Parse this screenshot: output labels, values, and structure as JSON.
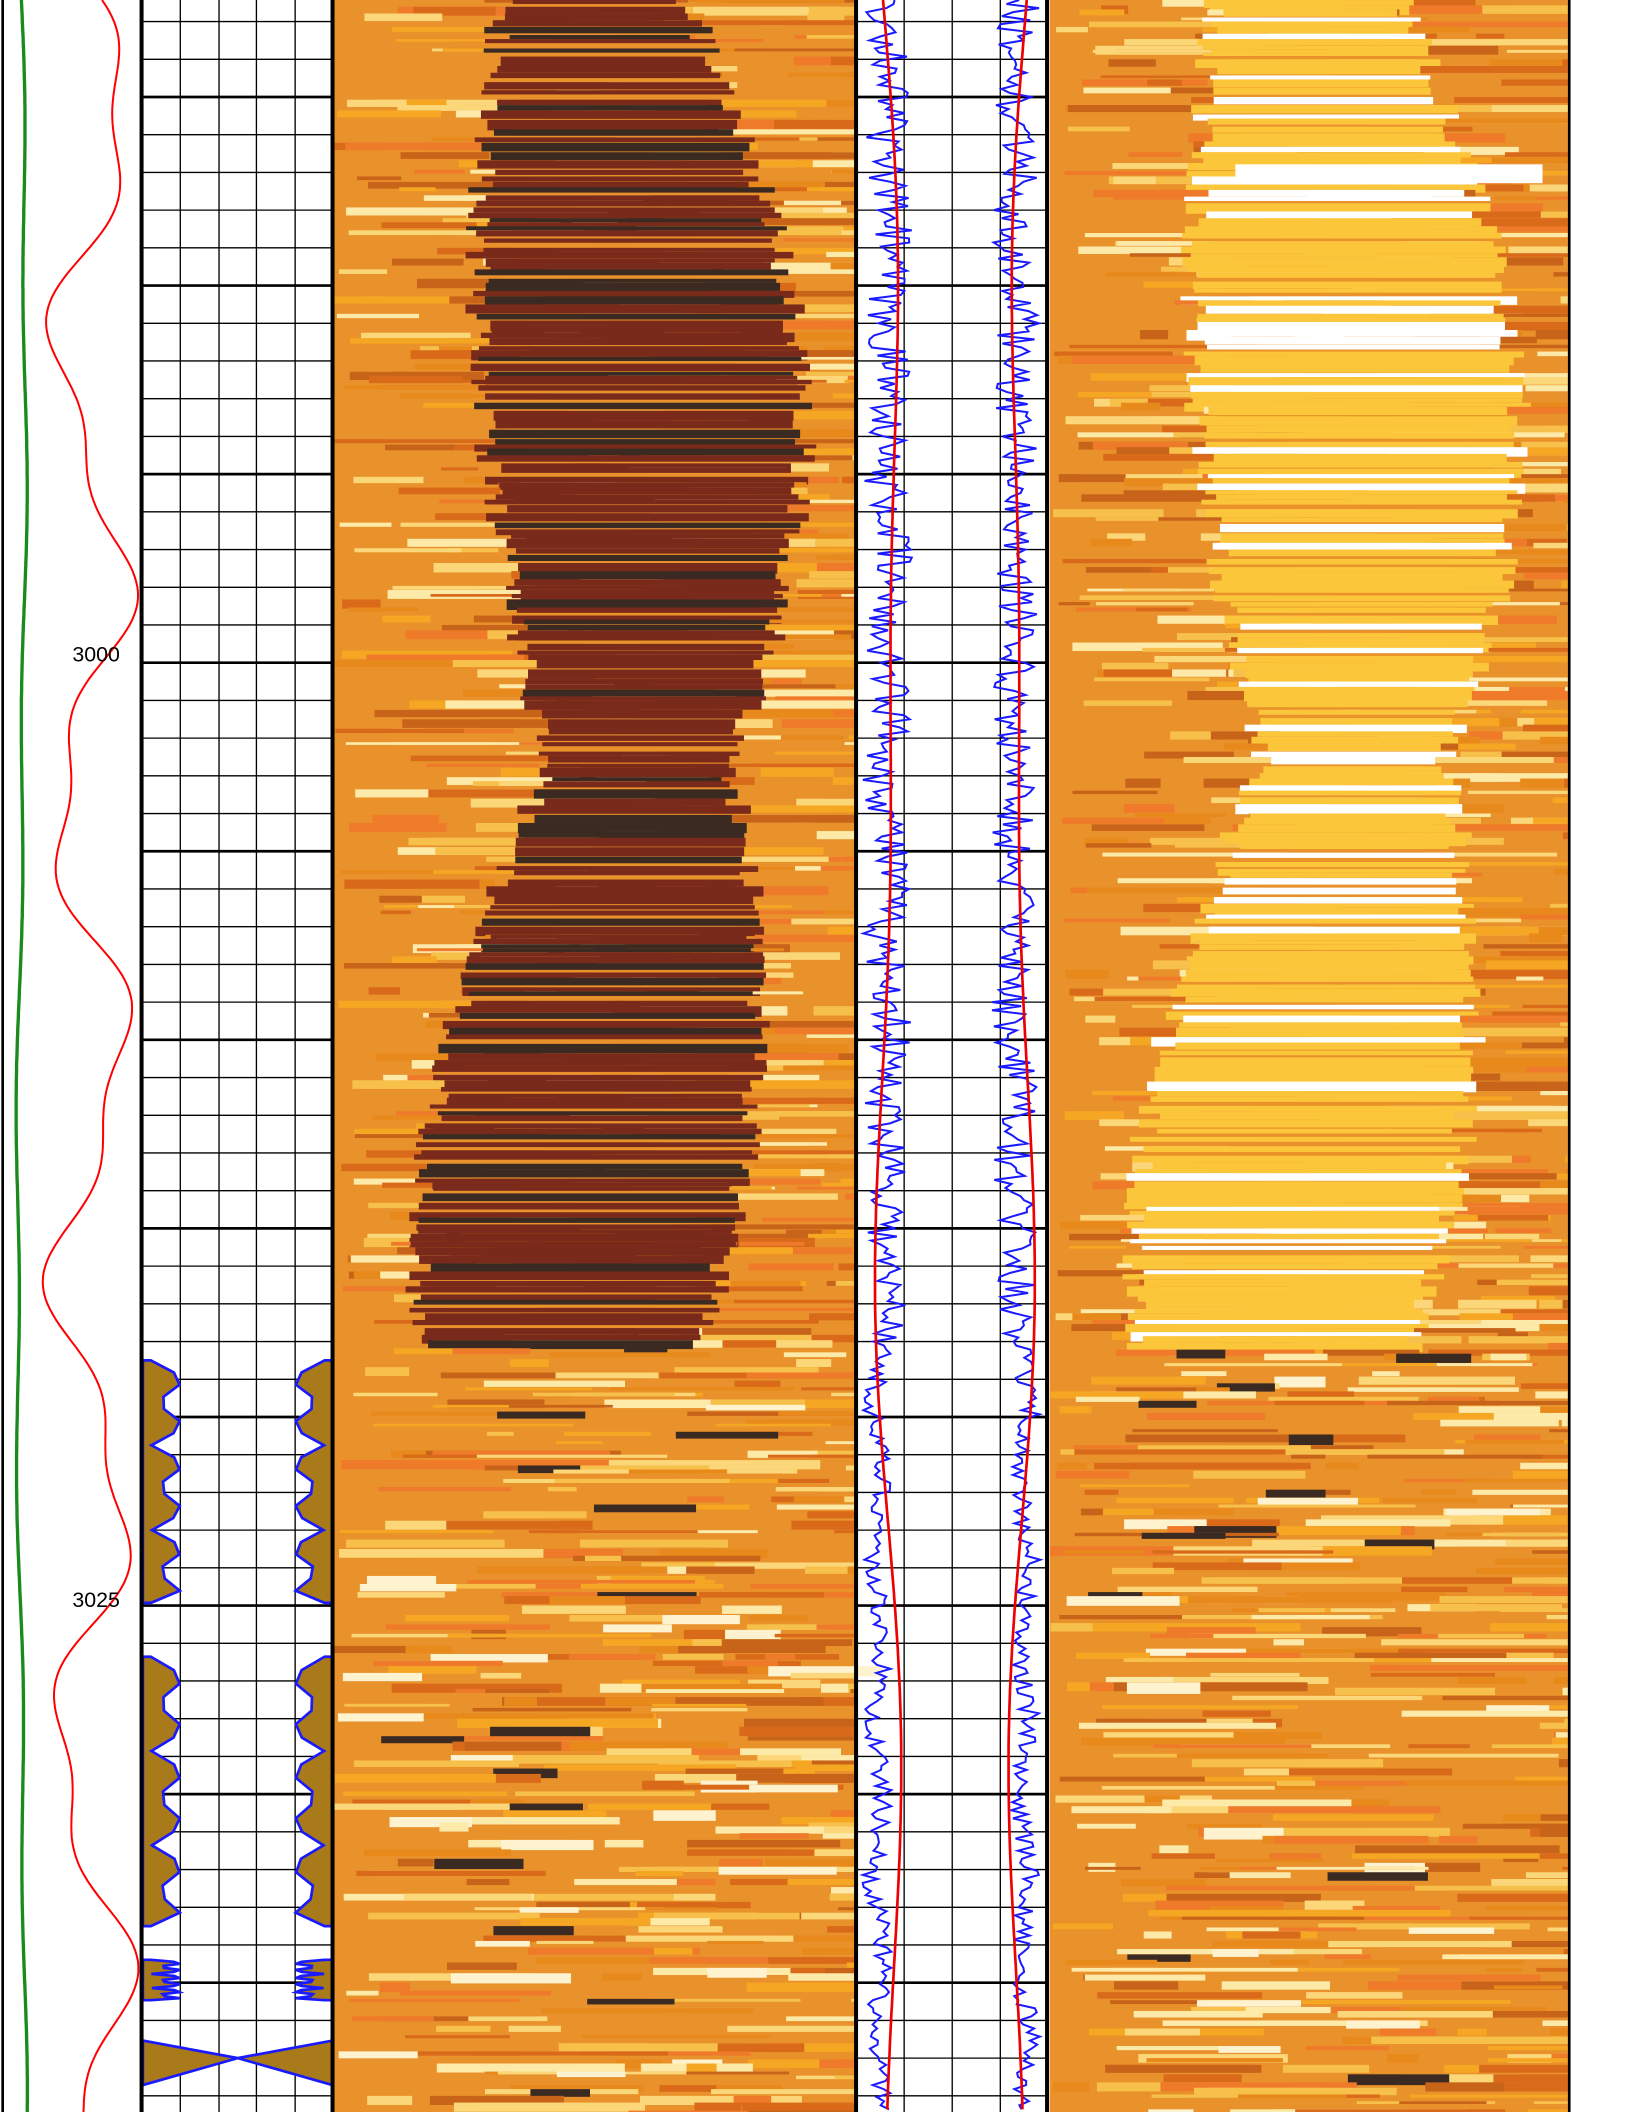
{
  "depth_labels": [
    "3000",
    "3025"
  ]
}
